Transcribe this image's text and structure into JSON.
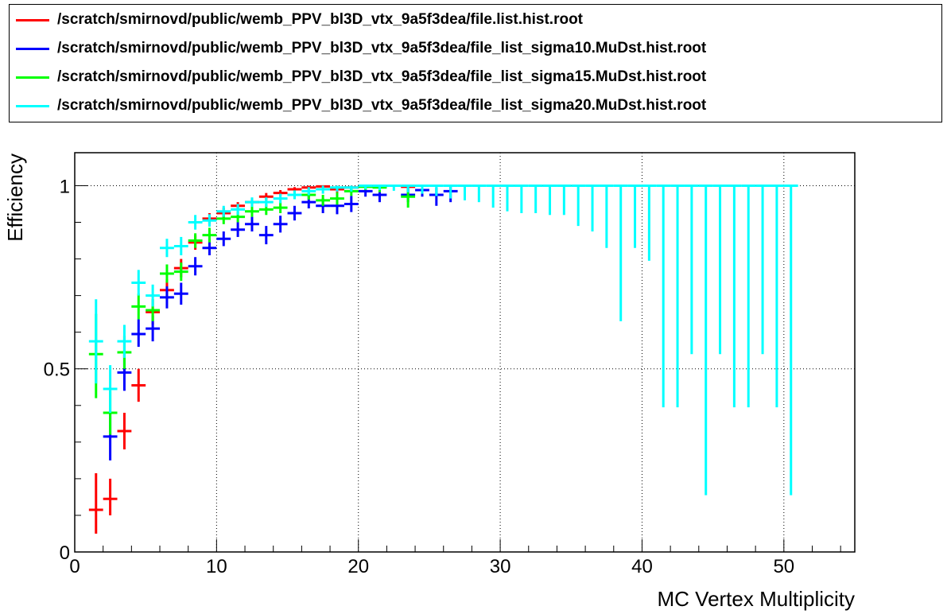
{
  "legend": {
    "entries": [
      {
        "label": "/scratch/smirnovd/public/wemb_PPV_bl3D_vtx_9a5f3dea/file.list.hist.root",
        "color": "#ff0000"
      },
      {
        "label": "/scratch/smirnovd/public/wemb_PPV_bl3D_vtx_9a5f3dea/file_list_sigma10.MuDst.hist.root",
        "color": "#0000ff"
      },
      {
        "label": "/scratch/smirnovd/public/wemb_PPV_bl3D_vtx_9a5f3dea/file_list_sigma15.MuDst.hist.root",
        "color": "#00ff00"
      },
      {
        "label": "/scratch/smirnovd/public/wemb_PPV_bl3D_vtx_9a5f3dea/file_list_sigma20.MuDst.hist.root",
        "color": "#00ffff"
      }
    ]
  },
  "chart_data": {
    "type": "scatter",
    "xlabel": "MC Vertex Multiplicity",
    "ylabel": "Efficiency",
    "xlim": [
      0,
      55
    ],
    "ylim": [
      0,
      1.09
    ],
    "xticks": [
      0,
      10,
      20,
      30,
      40,
      50
    ],
    "yticks": [
      0,
      0.5,
      1
    ],
    "grid": true,
    "legend_position": "top",
    "series": [
      {
        "name": "/scratch/smirnovd/public/wemb_PPV_bl3D_vtx_9a5f3dea/file.list.hist.root",
        "color": "#ff0000",
        "points": [
          {
            "x": 1.5,
            "y": 0.115,
            "lo": 0.05,
            "hi": 0.215
          },
          {
            "x": 2.5,
            "y": 0.145,
            "lo": 0.1,
            "hi": 0.2
          },
          {
            "x": 3.5,
            "y": 0.33,
            "lo": 0.28,
            "hi": 0.38
          },
          {
            "x": 4.5,
            "y": 0.455,
            "lo": 0.41,
            "hi": 0.5
          },
          {
            "x": 5.5,
            "y": 0.655,
            "lo": 0.62,
            "hi": 0.69
          },
          {
            "x": 6.5,
            "y": 0.715,
            "lo": 0.69,
            "hi": 0.745
          },
          {
            "x": 7.5,
            "y": 0.775,
            "lo": 0.75,
            "hi": 0.8
          },
          {
            "x": 8.5,
            "y": 0.845,
            "lo": 0.825,
            "hi": 0.865
          },
          {
            "x": 9.5,
            "y": 0.91,
            "lo": 0.895,
            "hi": 0.925
          },
          {
            "x": 10.5,
            "y": 0.925,
            "lo": 0.91,
            "hi": 0.94
          },
          {
            "x": 11.5,
            "y": 0.945,
            "lo": 0.935,
            "hi": 0.955
          },
          {
            "x": 12.5,
            "y": 0.955,
            "lo": 0.945,
            "hi": 0.965
          },
          {
            "x": 13.5,
            "y": 0.97,
            "lo": 0.96,
            "hi": 0.98
          },
          {
            "x": 14.5,
            "y": 0.98,
            "lo": 0.972,
            "hi": 0.988
          },
          {
            "x": 15.5,
            "y": 0.99,
            "lo": 0.982,
            "hi": 0.996
          },
          {
            "x": 16.5,
            "y": 0.995,
            "lo": 0.988,
            "hi": 1.0
          },
          {
            "x": 17.5,
            "y": 0.998,
            "lo": 0.992,
            "hi": 1.0
          },
          {
            "x": 18.5,
            "y": 0.99,
            "lo": 0.982,
            "hi": 0.996
          },
          {
            "x": 19.5,
            "y": 0.995,
            "lo": 0.988,
            "hi": 1.0
          },
          {
            "x": 20.5,
            "y": 1.0,
            "lo": 0.994,
            "hi": 1.0
          },
          {
            "x": 21.5,
            "y": 0.998,
            "lo": 0.99,
            "hi": 1.0
          },
          {
            "x": 23.5,
            "y": 0.997,
            "lo": 0.985,
            "hi": 1.0
          }
        ]
      },
      {
        "name": "/scratch/smirnovd/public/wemb_PPV_bl3D_vtx_9a5f3dea/file_list_sigma10.MuDst.hist.root",
        "color": "#0000ff",
        "points": [
          {
            "x": 2.5,
            "y": 0.315,
            "lo": 0.25,
            "hi": 0.38
          },
          {
            "x": 3.5,
            "y": 0.49,
            "lo": 0.44,
            "hi": 0.54
          },
          {
            "x": 4.5,
            "y": 0.595,
            "lo": 0.56,
            "hi": 0.635
          },
          {
            "x": 5.5,
            "y": 0.61,
            "lo": 0.575,
            "hi": 0.645
          },
          {
            "x": 6.5,
            "y": 0.695,
            "lo": 0.665,
            "hi": 0.725
          },
          {
            "x": 7.5,
            "y": 0.705,
            "lo": 0.675,
            "hi": 0.735
          },
          {
            "x": 8.5,
            "y": 0.78,
            "lo": 0.755,
            "hi": 0.805
          },
          {
            "x": 9.5,
            "y": 0.83,
            "lo": 0.81,
            "hi": 0.855
          },
          {
            "x": 10.5,
            "y": 0.855,
            "lo": 0.835,
            "hi": 0.875
          },
          {
            "x": 11.5,
            "y": 0.88,
            "lo": 0.86,
            "hi": 0.9
          },
          {
            "x": 12.5,
            "y": 0.895,
            "lo": 0.875,
            "hi": 0.915
          },
          {
            "x": 13.5,
            "y": 0.865,
            "lo": 0.84,
            "hi": 0.89
          },
          {
            "x": 14.5,
            "y": 0.895,
            "lo": 0.872,
            "hi": 0.918
          },
          {
            "x": 15.5,
            "y": 0.925,
            "lo": 0.905,
            "hi": 0.945
          },
          {
            "x": 16.5,
            "y": 0.955,
            "lo": 0.938,
            "hi": 0.972
          },
          {
            "x": 17.5,
            "y": 0.945,
            "lo": 0.925,
            "hi": 0.965
          },
          {
            "x": 18.5,
            "y": 0.945,
            "lo": 0.922,
            "hi": 0.968
          },
          {
            "x": 19.5,
            "y": 0.95,
            "lo": 0.928,
            "hi": 0.972
          },
          {
            "x": 20.5,
            "y": 0.985,
            "lo": 0.97,
            "hi": 0.998
          },
          {
            "x": 21.5,
            "y": 0.975,
            "lo": 0.955,
            "hi": 0.99
          },
          {
            "x": 23.5,
            "y": 0.975,
            "lo": 0.955,
            "hi": 0.992
          },
          {
            "x": 24.5,
            "y": 0.988,
            "lo": 0.97,
            "hi": 1.0
          },
          {
            "x": 25.5,
            "y": 0.975,
            "lo": 0.945,
            "hi": 0.995
          },
          {
            "x": 26.5,
            "y": 0.985,
            "lo": 0.955,
            "hi": 1.0
          }
        ]
      },
      {
        "name": "/scratch/smirnovd/public/wemb_PPV_bl3D_vtx_9a5f3dea/file_list_sigma15.MuDst.hist.root",
        "color": "#00ff00",
        "points": [
          {
            "x": 1.5,
            "y": 0.54,
            "lo": 0.42,
            "hi": 0.65
          },
          {
            "x": 2.5,
            "y": 0.38,
            "lo": 0.32,
            "hi": 0.44
          },
          {
            "x": 3.5,
            "y": 0.545,
            "lo": 0.5,
            "hi": 0.59
          },
          {
            "x": 4.5,
            "y": 0.67,
            "lo": 0.635,
            "hi": 0.705
          },
          {
            "x": 5.5,
            "y": 0.66,
            "lo": 0.63,
            "hi": 0.69
          },
          {
            "x": 6.5,
            "y": 0.76,
            "lo": 0.735,
            "hi": 0.785
          },
          {
            "x": 7.5,
            "y": 0.765,
            "lo": 0.74,
            "hi": 0.79
          },
          {
            "x": 8.5,
            "y": 0.85,
            "lo": 0.83,
            "hi": 0.87
          },
          {
            "x": 9.5,
            "y": 0.865,
            "lo": 0.845,
            "hi": 0.885
          },
          {
            "x": 10.5,
            "y": 0.91,
            "lo": 0.895,
            "hi": 0.925
          },
          {
            "x": 11.5,
            "y": 0.915,
            "lo": 0.9,
            "hi": 0.93
          },
          {
            "x": 12.5,
            "y": 0.93,
            "lo": 0.915,
            "hi": 0.945
          },
          {
            "x": 13.5,
            "y": 0.935,
            "lo": 0.92,
            "hi": 0.95
          },
          {
            "x": 14.5,
            "y": 0.94,
            "lo": 0.925,
            "hi": 0.955
          },
          {
            "x": 15.5,
            "y": 0.975,
            "lo": 0.963,
            "hi": 0.987
          },
          {
            "x": 16.5,
            "y": 0.975,
            "lo": 0.962,
            "hi": 0.988
          },
          {
            "x": 17.5,
            "y": 0.96,
            "lo": 0.945,
            "hi": 0.975
          },
          {
            "x": 18.5,
            "y": 0.965,
            "lo": 0.948,
            "hi": 0.982
          },
          {
            "x": 19.5,
            "y": 0.985,
            "lo": 0.972,
            "hi": 0.998
          },
          {
            "x": 20.5,
            "y": 0.997,
            "lo": 0.988,
            "hi": 1.0
          },
          {
            "x": 21.5,
            "y": 0.995,
            "lo": 0.982,
            "hi": 1.0
          },
          {
            "x": 23.5,
            "y": 0.97,
            "lo": 0.94,
            "hi": 0.99
          }
        ]
      },
      {
        "name": "/scratch/smirnovd/public/wemb_PPV_bl3D_vtx_9a5f3dea/file_list_sigma20.MuDst.hist.root",
        "color": "#00ffff",
        "points": [
          {
            "x": 1.5,
            "y": 0.575,
            "lo": 0.46,
            "hi": 0.69
          },
          {
            "x": 2.5,
            "y": 0.445,
            "lo": 0.38,
            "hi": 0.51
          },
          {
            "x": 3.5,
            "y": 0.575,
            "lo": 0.53,
            "hi": 0.62
          },
          {
            "x": 4.5,
            "y": 0.735,
            "lo": 0.7,
            "hi": 0.77
          },
          {
            "x": 5.5,
            "y": 0.7,
            "lo": 0.67,
            "hi": 0.73
          },
          {
            "x": 6.5,
            "y": 0.83,
            "lo": 0.805,
            "hi": 0.855
          },
          {
            "x": 7.5,
            "y": 0.835,
            "lo": 0.81,
            "hi": 0.86
          },
          {
            "x": 8.5,
            "y": 0.9,
            "lo": 0.88,
            "hi": 0.92
          },
          {
            "x": 9.5,
            "y": 0.905,
            "lo": 0.888,
            "hi": 0.922
          },
          {
            "x": 10.5,
            "y": 0.93,
            "lo": 0.915,
            "hi": 0.945
          },
          {
            "x": 11.5,
            "y": 0.935,
            "lo": 0.92,
            "hi": 0.95
          },
          {
            "x": 12.5,
            "y": 0.955,
            "lo": 0.942,
            "hi": 0.968
          },
          {
            "x": 13.5,
            "y": 0.955,
            "lo": 0.942,
            "hi": 0.968
          },
          {
            "x": 14.5,
            "y": 0.965,
            "lo": 0.952,
            "hi": 0.978
          },
          {
            "x": 15.5,
            "y": 0.975,
            "lo": 0.963,
            "hi": 0.987
          },
          {
            "x": 16.5,
            "y": 0.985,
            "lo": 0.974,
            "hi": 0.996
          },
          {
            "x": 17.5,
            "y": 0.99,
            "lo": 0.978,
            "hi": 1.0
          },
          {
            "x": 18.5,
            "y": 0.995,
            "lo": 0.984,
            "hi": 1.0
          },
          {
            "x": 19.5,
            "y": 0.995,
            "lo": 0.984,
            "hi": 1.0
          },
          {
            "x": 20.5,
            "y": 1.0,
            "lo": 0.99,
            "hi": 1.0
          },
          {
            "x": 21.5,
            "y": 1.0,
            "lo": 0.988,
            "hi": 1.0
          },
          {
            "x": 22.5,
            "y": 1.0,
            "lo": 0.986,
            "hi": 1.0
          },
          {
            "x": 23.5,
            "y": 1.0,
            "lo": 0.982,
            "hi": 1.0
          },
          {
            "x": 24.5,
            "y": 1.0,
            "lo": 0.978,
            "hi": 1.0
          },
          {
            "x": 25.5,
            "y": 1.0,
            "lo": 0.972,
            "hi": 1.0
          },
          {
            "x": 26.5,
            "y": 1.0,
            "lo": 0.965,
            "hi": 1.0
          },
          {
            "x": 27.5,
            "y": 1.0,
            "lo": 0.96,
            "hi": 1.0
          },
          {
            "x": 28.5,
            "y": 1.0,
            "lo": 0.955,
            "hi": 1.0
          },
          {
            "x": 29.5,
            "y": 1.0,
            "lo": 0.94,
            "hi": 1.0
          },
          {
            "x": 30.5,
            "y": 1.0,
            "lo": 0.93,
            "hi": 1.0
          },
          {
            "x": 31.5,
            "y": 1.0,
            "lo": 0.925,
            "hi": 1.0
          },
          {
            "x": 32.5,
            "y": 1.0,
            "lo": 0.925,
            "hi": 1.0
          },
          {
            "x": 33.5,
            "y": 1.0,
            "lo": 0.92,
            "hi": 1.0
          },
          {
            "x": 34.5,
            "y": 1.0,
            "lo": 0.92,
            "hi": 1.0
          },
          {
            "x": 35.5,
            "y": 1.0,
            "lo": 0.89,
            "hi": 1.0
          },
          {
            "x": 36.5,
            "y": 1.0,
            "lo": 0.875,
            "hi": 1.0
          },
          {
            "x": 37.5,
            "y": 1.0,
            "lo": 0.83,
            "hi": 1.0
          },
          {
            "x": 38.5,
            "y": 1.0,
            "lo": 0.63,
            "hi": 1.0
          },
          {
            "x": 39.5,
            "y": 1.0,
            "lo": 0.83,
            "hi": 1.0
          },
          {
            "x": 40.5,
            "y": 1.0,
            "lo": 0.795,
            "hi": 1.0
          },
          {
            "x": 41.5,
            "y": 1.0,
            "lo": 0.395,
            "hi": 1.0
          },
          {
            "x": 42.5,
            "y": 1.0,
            "lo": 0.395,
            "hi": 1.0
          },
          {
            "x": 43.5,
            "y": 1.0,
            "lo": 0.54,
            "hi": 1.0
          },
          {
            "x": 44.5,
            "y": 1.0,
            "lo": 0.155,
            "hi": 1.0
          },
          {
            "x": 45.5,
            "y": 1.0,
            "lo": 0.54,
            "hi": 1.0
          },
          {
            "x": 46.5,
            "y": 1.0,
            "lo": 0.395,
            "hi": 1.0
          },
          {
            "x": 47.5,
            "y": 1.0,
            "lo": 0.395,
            "hi": 1.0
          },
          {
            "x": 48.5,
            "y": 1.0,
            "lo": 0.54,
            "hi": 1.0
          },
          {
            "x": 49.5,
            "y": 1.0,
            "lo": 0.395,
            "hi": 1.0
          },
          {
            "x": 50.5,
            "y": 1.0,
            "lo": 0.155,
            "hi": 1.0
          }
        ]
      }
    ]
  }
}
